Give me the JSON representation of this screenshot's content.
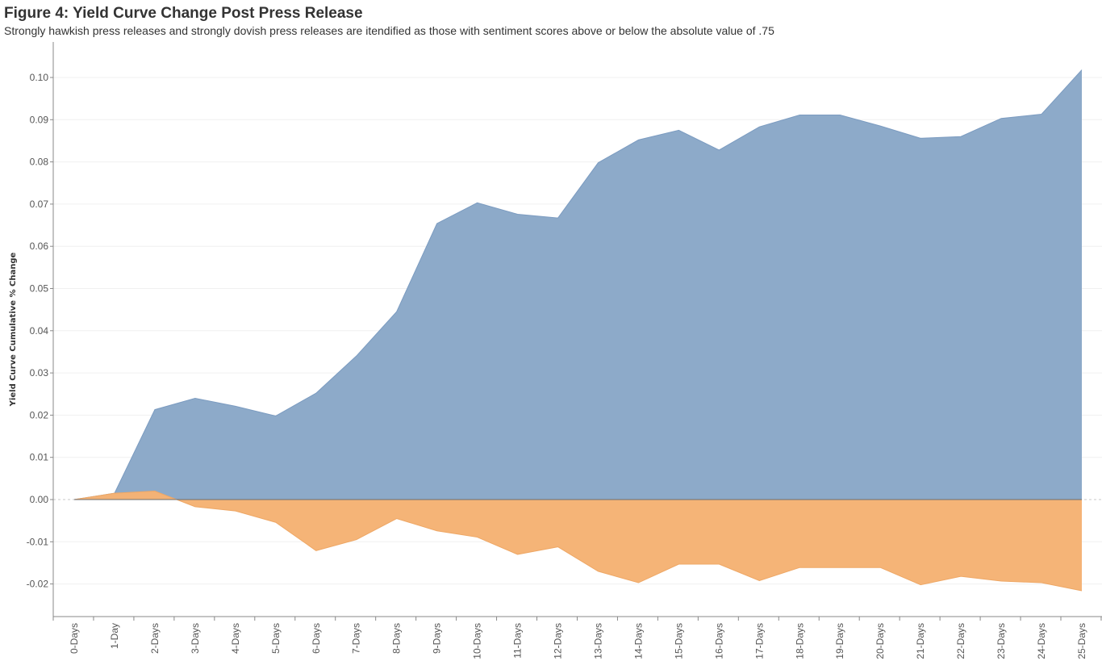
{
  "header": {
    "title": "Figure 4: Yield Curve Change Post Press Release",
    "subtitle": "Strongly hawkish press releases and strongly dovish press releases are itendified as those with sentiment scores above or below the absolute value of .75"
  },
  "chart_data": {
    "type": "area",
    "title": "Figure 4: Yield Curve Change Post Press Release",
    "subtitle": "Strongly hawkish press releases and strongly dovish press releases are itendified as those with sentiment scores above or below the absolute value of .75",
    "xlabel": "",
    "ylabel": "Yield Curve Cumulative % Change",
    "categories": [
      "0-Days",
      "1-Day",
      "2-Days",
      "3-Days",
      "4-Days",
      "5-Days",
      "6-Days",
      "7-Days",
      "8-Days",
      "9-Days",
      "10-Days",
      "11-Days",
      "12-Days",
      "13-Days",
      "14-Days",
      "15-Days",
      "16-Days",
      "17-Days",
      "18-Days",
      "19-Days",
      "20-Days",
      "21-Days",
      "22-Days",
      "23-Days",
      "24-Days",
      "25-Days"
    ],
    "series": [
      {
        "color": "#8ba8c8",
        "values": [
          0.0,
          0.0015,
          0.0213,
          0.024,
          0.0221,
          0.0198,
          0.0252,
          0.034,
          0.0445,
          0.0654,
          0.0703,
          0.0676,
          0.0667,
          0.0798,
          0.0852,
          0.0875,
          0.0828,
          0.0883,
          0.0911,
          0.0911,
          0.0885,
          0.0856,
          0.086,
          0.0903,
          0.0913,
          0.1018
        ]
      },
      {
        "color": "#f5b274",
        "values": [
          0.0,
          0.0015,
          0.002,
          -0.0017,
          -0.0027,
          -0.0054,
          -0.0121,
          -0.0095,
          -0.0045,
          -0.0074,
          -0.0089,
          -0.013,
          -0.0112,
          -0.017,
          -0.0197,
          -0.0153,
          -0.0153,
          -0.0192,
          -0.0161,
          -0.0161,
          -0.0161,
          -0.0202,
          -0.0182,
          -0.0193,
          -0.0197,
          -0.0216
        ]
      }
    ],
    "y_ticks": [
      0.1,
      0.09,
      0.08,
      0.07,
      0.06,
      0.05,
      0.04,
      0.03,
      0.02,
      0.01,
      0.0,
      -0.01,
      -0.02
    ],
    "y_tick_labels": [
      "0.10",
      "0.09",
      "0.08",
      "0.07",
      "0.06",
      "0.05",
      "0.04",
      "0.03",
      "0.02",
      "0.01",
      "0.00",
      "-0.01",
      "-0.02"
    ],
    "ylim": [
      -0.0275,
      0.108
    ],
    "grid": true,
    "legend": "none"
  }
}
